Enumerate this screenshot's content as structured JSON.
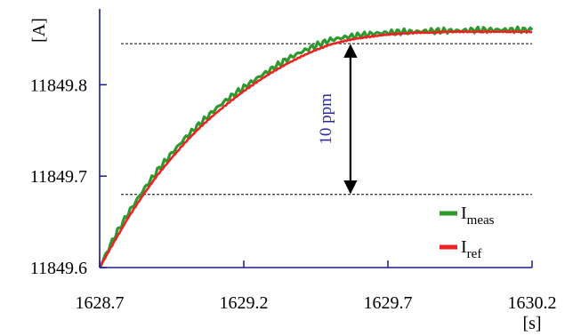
{
  "chart_data": {
    "type": "line",
    "xlabel": "[s]",
    "ylabel": "[A]",
    "xlim": [
      1628.7,
      1630.2
    ],
    "ylim": [
      11849.6,
      11849.883
    ],
    "x_ticks": [
      "1628.7",
      "1629.2",
      "1629.7",
      "1630.2"
    ],
    "x_tick_values": [
      1628.7,
      1629.2,
      1629.7,
      1630.2
    ],
    "y_ticks": [
      "11849.6",
      "11849.7",
      "11849.8"
    ],
    "y_tick_values": [
      11849.6,
      11849.7,
      11849.8
    ],
    "grid": false,
    "legend": "bottom-right",
    "series": [
      {
        "name": "I_meas",
        "label_main": "I",
        "label_sub": "meas",
        "color": "#2e9a2e",
        "x": [
          1628.7,
          1628.75,
          1628.8,
          1628.85,
          1628.9,
          1628.95,
          1629.0,
          1629.05,
          1629.1,
          1629.15,
          1629.2,
          1629.25,
          1629.3,
          1629.35,
          1629.4,
          1629.45,
          1629.5,
          1629.55,
          1629.6,
          1629.65,
          1629.7,
          1629.75,
          1629.8,
          1629.85,
          1629.9,
          1629.95,
          1630.0,
          1630.05,
          1630.1,
          1630.15,
          1630.2
        ],
        "y": [
          11849.6,
          11849.633,
          11849.66,
          11849.684,
          11849.706,
          11849.725,
          11849.743,
          11849.758,
          11849.773,
          11849.786,
          11849.797,
          11849.808,
          11849.818,
          11849.828,
          11849.836,
          11849.843,
          11849.849,
          11849.852,
          11849.854,
          11849.856,
          11849.857,
          11849.858,
          11849.858,
          11849.859,
          11849.859,
          11849.859,
          11849.86,
          11849.86,
          11849.86,
          11849.86,
          11849.86
        ]
      },
      {
        "name": "I_ref",
        "label_main": "I",
        "label_sub": "ref",
        "color": "#ee2222",
        "x": [
          1628.7,
          1628.75,
          1628.8,
          1628.85,
          1628.9,
          1628.95,
          1629.0,
          1629.05,
          1629.1,
          1629.15,
          1629.2,
          1629.25,
          1629.3,
          1629.35,
          1629.4,
          1629.45,
          1629.5,
          1629.55,
          1629.6,
          1629.65,
          1629.7,
          1629.75,
          1629.8,
          1629.85,
          1629.9,
          1629.95,
          1630.0,
          1630.05,
          1630.1,
          1630.15,
          1630.2
        ],
        "y": [
          11849.6,
          11849.628,
          11849.655,
          11849.679,
          11849.701,
          11849.72,
          11849.738,
          11849.754,
          11849.768,
          11849.781,
          11849.793,
          11849.804,
          11849.814,
          11849.823,
          11849.831,
          11849.838,
          11849.844,
          11849.848,
          11849.851,
          11849.853,
          11849.855,
          11849.856,
          11849.857,
          11849.857,
          11849.858,
          11849.858,
          11849.858,
          11849.858,
          11849.858,
          11849.858,
          11849.858
        ]
      }
    ],
    "reference_lines": [
      11849.845,
      11849.68
    ],
    "annotation": {
      "text": "10 ppm",
      "x": 1629.57,
      "y_from": 11849.845,
      "y_to": 11849.68
    }
  }
}
